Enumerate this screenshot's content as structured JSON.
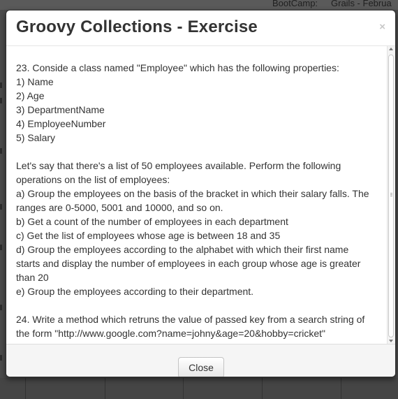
{
  "background": {
    "top_texts": [
      "BootCamp:",
      "Grails - Februa"
    ]
  },
  "modal": {
    "title": "Groovy Collections - Exercise",
    "close_icon": "×",
    "body_lines": [
      "23. Conside a class named \"Employee\" which has the following properties:",
      "1) Name",
      "2) Age",
      "3) DepartmentName",
      "4) EmployeeNumber",
      "5) Salary",
      "",
      "Let's say that there's a list of 50 employees available. Perform the following",
      "operations on the list of employees:",
      "a) Group the employees on the basis of the bracket in which their salary falls. The",
      "ranges are 0-5000, 5001 and 10000, and so on.",
      "b) Get a count of the number of employees in each department",
      "c) Get the list of employees whose age is between 18 and 35",
      "d) Group the employees according to the alphabet with which their first name",
      "starts and display the number of employees in each group whose age is greater",
      "than 20",
      "e) Group the employees according to their department.",
      "",
      "24. Write a method which retruns the value of passed key from a search string of",
      "the form \"http://www.google.com?name=johny&age=20&hobby=cricket\""
    ],
    "footer": {
      "close_label": "Close"
    }
  }
}
